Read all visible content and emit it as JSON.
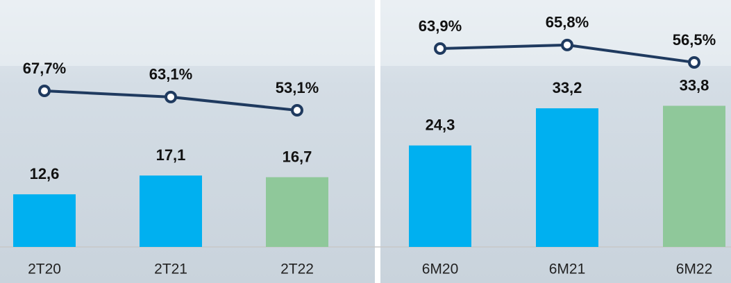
{
  "chart_data": [
    {
      "type": "bar",
      "categories": [
        "2T20",
        "2T21",
        "2T22"
      ],
      "values": [
        12.6,
        17.1,
        16.7
      ],
      "value_labels": [
        "12,6",
        "17,1",
        "16,7"
      ],
      "colors": [
        "#00b0f0",
        "#00b0f0",
        "#8fc89a"
      ],
      "line": {
        "type": "line",
        "values": [
          67.7,
          63.1,
          53.1
        ],
        "value_labels": [
          "67,7%",
          "63,1%",
          "53,1%"
        ],
        "color": "#1f3a5f"
      }
    },
    {
      "type": "bar",
      "categories": [
        "6M20",
        "6M21",
        "6M22"
      ],
      "values": [
        24.3,
        33.2,
        33.8
      ],
      "value_labels": [
        "24,3",
        "33,2",
        "33,8"
      ],
      "colors": [
        "#00b0f0",
        "#00b0f0",
        "#8fc89a"
      ],
      "line": {
        "type": "line",
        "values": [
          63.9,
          65.8,
          56.5
        ],
        "value_labels": [
          "63,9%",
          "65,8%",
          "56,5%"
        ],
        "color": "#1f3a5f"
      }
    }
  ]
}
